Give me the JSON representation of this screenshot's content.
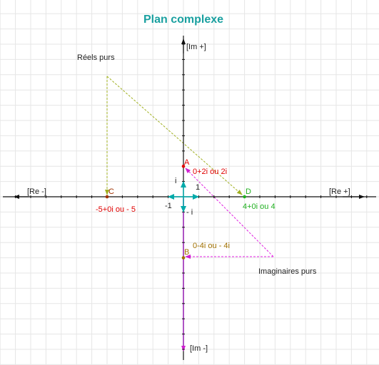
{
  "title": "Plan complexe",
  "axes": {
    "re_pos": "[Re +]",
    "re_neg": "[Re -]",
    "im_pos": "[Im +]",
    "im_neg": "[Im -]"
  },
  "unit_labels": {
    "one": "1",
    "minus_one": "-1",
    "i": "i",
    "minus_i": "- i"
  },
  "captions": {
    "reels": "Réels purs",
    "imaginaires": "Imaginaires purs"
  },
  "points": [
    {
      "letter": "A",
      "label": "0+2i ou 2i",
      "re": 0,
      "im": 2,
      "color": "#e00000"
    },
    {
      "letter": "B",
      "label": "0-4i ou - 4i",
      "re": 0,
      "im": -4,
      "color": "#a07000"
    },
    {
      "letter": "C",
      "label": "-5+0i  ou - 5",
      "re": -5,
      "im": 0,
      "color": "#a03000"
    },
    {
      "letter": "D",
      "label": "4+0i  ou 4",
      "re": 4,
      "im": 0,
      "color": "#20b020"
    }
  ],
  "colors": {
    "title": "#1aa0a0",
    "grid": "#e6e6e6",
    "axis": "#111111",
    "unit_vector": "#00aaaa",
    "reels_guide": "#a0b020",
    "imag_guide": "#e020e0",
    "imag_axis": "#a020c0",
    "red_label": "#e00000",
    "green_label": "#20b020",
    "gold_label": "#a07000"
  }
}
